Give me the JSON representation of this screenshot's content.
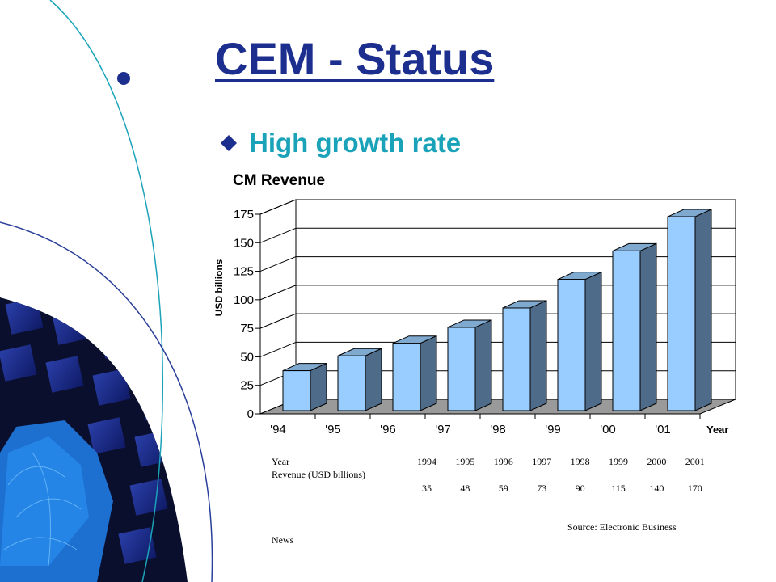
{
  "slide": {
    "title": "CEM - Status",
    "bullet": "High growth rate"
  },
  "chart_data": {
    "type": "bar",
    "title": "CM Revenue",
    "ylabel": "USD billions",
    "xlabel": "Year",
    "categories": [
      "'94",
      "'95",
      "'96",
      "'97",
      "'98",
      "'99",
      "'00",
      "'01"
    ],
    "values": [
      35,
      48,
      59,
      73,
      90,
      115,
      140,
      170
    ],
    "ylim": [
      0,
      175
    ],
    "yticks": [
      0,
      25,
      50,
      75,
      100,
      125,
      150,
      175
    ],
    "grid": true,
    "style": "3d",
    "colors": {
      "bar_front": "#99ccff",
      "bar_side": "#4f6b8a",
      "bar_top": "#7fa9cf"
    }
  },
  "table": {
    "row1_label": "Year",
    "row2_label": "Revenue (USD billions)",
    "years": [
      "1994",
      "1995",
      "1996",
      "1997",
      "1998",
      "1999",
      "2000",
      "2001"
    ],
    "revenues": [
      "35",
      "48",
      "59",
      "73",
      "90",
      "115",
      "140",
      "170"
    ]
  },
  "source": {
    "line1": "Source:   Electronic Business",
    "line2": "News"
  }
}
